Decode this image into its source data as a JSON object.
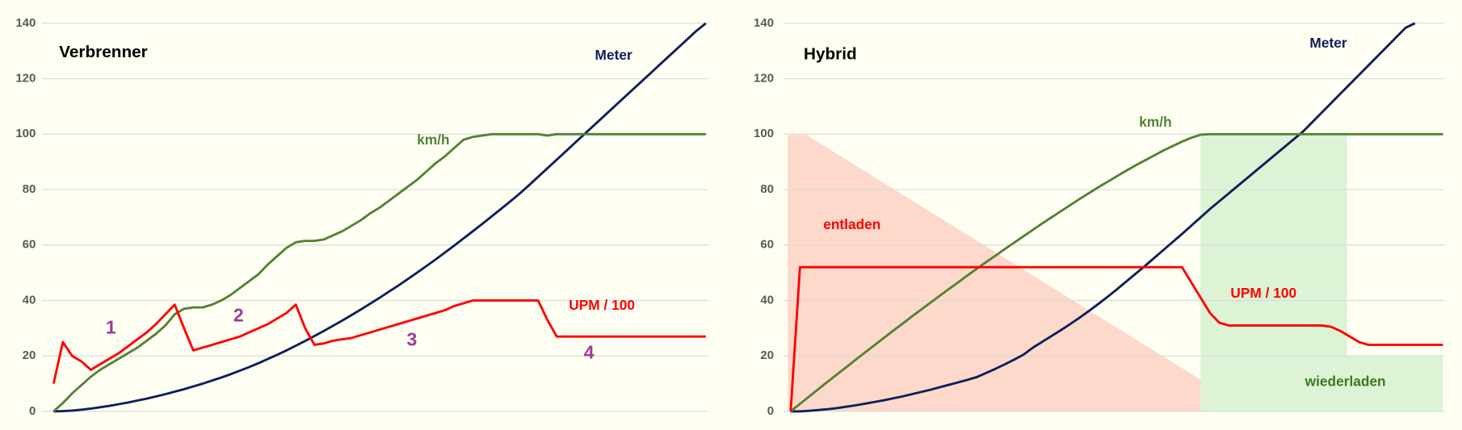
{
  "chart_data": [
    {
      "type": "line",
      "title": "Verbrenner",
      "ylim": [
        0,
        140
      ],
      "yticks": [
        0,
        20,
        40,
        60,
        80,
        100,
        120,
        140
      ],
      "grid": true,
      "series": [
        {
          "name": "Meter",
          "color": "#0e1f5b",
          "values": [
            0,
            0.1,
            0.3,
            0.6,
            1,
            1.5,
            2,
            2.6,
            3.2,
            3.9,
            4.6,
            5.4,
            6.2,
            7.1,
            8,
            9,
            10,
            11.1,
            12.2,
            13.4,
            14.7,
            16,
            17.4,
            18.9,
            20.4,
            22,
            23.7,
            25.4,
            27.2,
            29,
            30.9,
            32.8,
            34.8,
            36.8,
            38.9,
            41,
            43.2,
            45.4,
            47.7,
            50,
            52.4,
            54.8,
            57.3,
            59.8,
            62.4,
            65,
            67.6,
            70.3,
            73,
            75.7,
            78.5,
            81.5,
            84.6,
            87.7,
            90.8,
            93.9,
            97,
            100.1,
            103.2,
            106.3,
            109.4,
            112.5,
            115.6,
            118.7,
            121.8,
            124.9,
            128,
            131.1,
            134.2,
            137.3,
            140
          ]
        },
        {
          "name": "km/h",
          "color": "#548235",
          "values": [
            0,
            3,
            6.5,
            9.5,
            12.5,
            15,
            17,
            19,
            21,
            23,
            25.5,
            28,
            31,
            35,
            37,
            37.5,
            37.5,
            38.5,
            40,
            42,
            44.5,
            47,
            49.5,
            53,
            56,
            59,
            61,
            61.5,
            61.5,
            62,
            63.5,
            65,
            67,
            69,
            71.5,
            73.5,
            76,
            78.5,
            81,
            83.5,
            86.5,
            89.5,
            92,
            95,
            98,
            99,
            99.5,
            100,
            100,
            100,
            100,
            100,
            100,
            99.5,
            100,
            100,
            100,
            100,
            100,
            100,
            100,
            100,
            100,
            100,
            100,
            100,
            100,
            100,
            100,
            100,
            100
          ]
        },
        {
          "name": "UPM / 100",
          "color": "#ff0000",
          "values": [
            10,
            25,
            20,
            18,
            15,
            17,
            19,
            21,
            23.5,
            26,
            28.5,
            31.5,
            35,
            38.5,
            30,
            22,
            23,
            24,
            25,
            26,
            27,
            28.5,
            30,
            31.5,
            33.5,
            35.5,
            38.5,
            30,
            24,
            24.5,
            25.5,
            26,
            26.5,
            27.5,
            28.5,
            29.5,
            30.5,
            31.5,
            32.5,
            33.5,
            34.5,
            35.5,
            36.5,
            38,
            39,
            40,
            40,
            40,
            40,
            40,
            40,
            40,
            40,
            33,
            27,
            27,
            27,
            27,
            27,
            27,
            27,
            27,
            27,
            27,
            27,
            27,
            27,
            27,
            27,
            27,
            27
          ]
        }
      ],
      "annotations": [
        {
          "text": "1",
          "color": "#9e3c96"
        },
        {
          "text": "2",
          "color": "#9e3c96"
        },
        {
          "text": "3",
          "color": "#9e3c96"
        },
        {
          "text": "4",
          "color": "#9e3c96"
        }
      ]
    },
    {
      "type": "line",
      "title": "Hybrid",
      "ylim": [
        0,
        140
      ],
      "yticks": [
        0,
        20,
        40,
        60,
        80,
        100,
        120,
        140
      ],
      "grid": true,
      "series": [
        {
          "name": "Meter",
          "color": "#0e1f5b",
          "values": [
            0,
            0,
            0.2,
            0.5,
            0.8,
            1.2,
            1.7,
            2.2,
            2.8,
            3.4,
            4,
            4.7,
            5.4,
            6.2,
            7,
            7.8,
            8.7,
            9.6,
            10.5,
            11.4,
            12.4,
            13.9,
            15.4,
            17,
            18.7,
            20.5,
            23,
            25.1,
            27.2,
            29.3,
            31.5,
            33.8,
            36.2,
            38.7,
            41.3,
            44,
            46.8,
            49.6,
            52.4,
            55.3,
            58.2,
            61.1,
            64,
            67,
            70,
            73,
            75.8,
            78.6,
            81.4,
            84.2,
            87,
            89.8,
            92.6,
            95.4,
            98.2,
            101,
            104.4,
            107.8,
            111.2,
            114.6,
            118,
            121.4,
            124.8,
            128.2,
            131.6,
            135,
            138.4,
            140,
            null,
            null,
            null
          ]
        },
        {
          "name": "km/h",
          "color": "#548235",
          "values": [
            0,
            2.7,
            5.4,
            8.1,
            10.8,
            13.4,
            16,
            18.7,
            21.3,
            23.9,
            26.5,
            29.1,
            31.6,
            34.2,
            36.7,
            39.2,
            41.7,
            44.2,
            46.6,
            49.1,
            51.5,
            53.9,
            56.2,
            58.6,
            60.9,
            63.2,
            65.5,
            67.8,
            70,
            72.2,
            74.4,
            76.6,
            78.7,
            80.8,
            82.8,
            84.8,
            86.8,
            88.7,
            90.5,
            92.3,
            94.1,
            95.7,
            97.3,
            98.7,
            99.8,
            100,
            100,
            100,
            100,
            100,
            100,
            100,
            100,
            100,
            100,
            100,
            100,
            100,
            100,
            100,
            100,
            100,
            100,
            100,
            100,
            100,
            100,
            100,
            100,
            100,
            100
          ]
        },
        {
          "name": "UPM / 100",
          "color": "#ff0000",
          "values": [
            0,
            52,
            52,
            52,
            52,
            52,
            52,
            52,
            52,
            52,
            52,
            52,
            52,
            52,
            52,
            52,
            52,
            52,
            52,
            52,
            52,
            52,
            52,
            52,
            52,
            52,
            52,
            52,
            52,
            52,
            52,
            52,
            52,
            52,
            52,
            52,
            52,
            52,
            52,
            52,
            52,
            52,
            52,
            46.5,
            41,
            35.5,
            32,
            31,
            31,
            31,
            31,
            31,
            31,
            31,
            31,
            31,
            31,
            31,
            30.5,
            29,
            27,
            25,
            24,
            24,
            24,
            24,
            24,
            24,
            24,
            24,
            24
          ]
        }
      ],
      "annotations": [
        {
          "text": "entladen",
          "color": "#ff0000"
        },
        {
          "text": "wiederladen",
          "color": "#3a7a22"
        }
      ]
    }
  ]
}
